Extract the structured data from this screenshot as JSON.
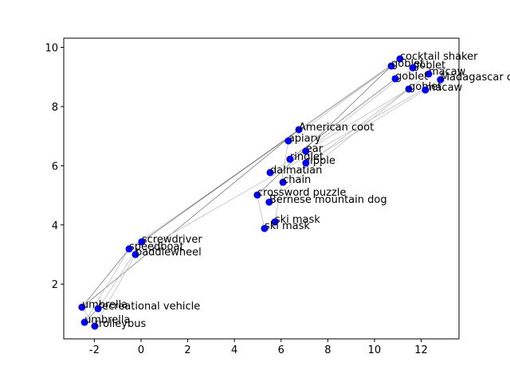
{
  "chart_data": {
    "type": "scatter",
    "x": [
      11.09,
      10.72,
      11.64,
      12.32,
      12.83,
      10.89,
      11.47,
      12.18,
      6.76,
      6.31,
      7.06,
      6.38,
      7.06,
      5.53,
      6.08,
      4.98,
      5.49,
      5.73,
      5.29,
      0.03,
      -0.51,
      -0.24,
      -2.53,
      -1.84,
      -2.42,
      -1.98
    ],
    "values": [
      9.61,
      9.37,
      9.31,
      9.1,
      8.91,
      8.94,
      8.59,
      8.56,
      7.22,
      6.84,
      6.49,
      6.22,
      6.09,
      5.77,
      5.44,
      5.01,
      4.77,
      4.1,
      3.88,
      3.43,
      3.19,
      3.0,
      1.22,
      1.17,
      0.71,
      0.58
    ],
    "labels": [
      "cocktail shaker",
      "goblet",
      "goblet",
      "macaw",
      "Madagascar cat",
      "goblet",
      "goblet",
      "macaw",
      "American coot",
      "apiary",
      "ear",
      "ringlet",
      "ripple",
      "dalmatian",
      "chain",
      "crossword puzzle",
      "Bernese mountain dog",
      "ski mask",
      "ski mask",
      "screwdriver",
      "speedboat",
      "paddlewheel",
      "umbrella",
      "recreational vehicle",
      "umbrella",
      "trolleybus"
    ],
    "links": [
      [
        22,
        8
      ],
      [
        23,
        19
      ],
      [
        24,
        20
      ],
      [
        25,
        21
      ],
      [
        22,
        20
      ],
      [
        19,
        0
      ],
      [
        20,
        1
      ],
      [
        21,
        4
      ],
      [
        19,
        8
      ],
      [
        8,
        0
      ],
      [
        9,
        1
      ],
      [
        10,
        2
      ],
      [
        11,
        5
      ],
      [
        12,
        7
      ],
      [
        13,
        6
      ],
      [
        14,
        3
      ],
      [
        15,
        1
      ],
      [
        16,
        6
      ],
      [
        17,
        9
      ],
      [
        18,
        15
      ],
      [
        24,
        23
      ],
      [
        25,
        22
      ]
    ],
    "color": "#0000ff",
    "xlim": [
      -3.31,
      13.62
    ],
    "ylim": [
      0.15,
      10.31
    ],
    "xticks": [
      -2,
      0,
      2,
      4,
      6,
      8,
      10,
      12
    ],
    "yticks": [
      2,
      4,
      6,
      8,
      10
    ]
  }
}
